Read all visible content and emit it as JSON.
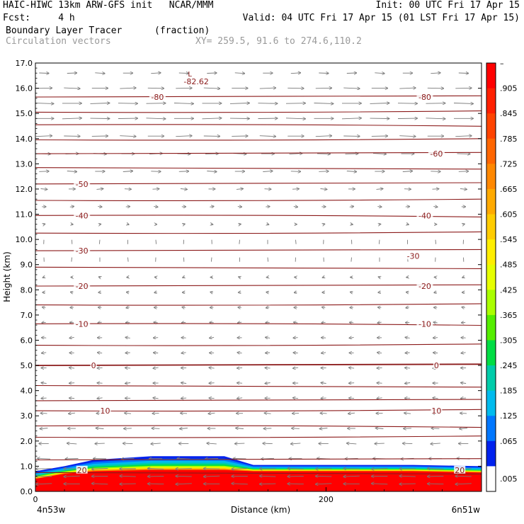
{
  "header": {
    "title_left": "HAIC-HIWC 13km ARW-GFS init   NCAR/MMM",
    "title_right": "Init: 00 UTC Fri 17 Apr 15",
    "fcst_label": "Fcst:     4 h",
    "valid_right": "Valid: 04 UTC Fri 17 Apr 15 (01 LST Fri 17 Apr 15)",
    "field_label": "Boundary Layer Tracer",
    "field_units": "(fraction)",
    "vector_label": "Circulation vectors",
    "xy_label": "XY= 259.5, 91.6 to 274.6,110.2"
  },
  "chart_data": {
    "type": "area",
    "title": "Boundary Layer Tracer",
    "units": "(fraction)",
    "xlabel": "Distance (km)",
    "ylabel": "Height (km)",
    "xlim": [
      0,
      307
    ],
    "ylim": [
      0,
      17
    ],
    "x_tick_labels": [
      "0",
      "200"
    ],
    "x_ticks": [
      0,
      200
    ],
    "x_end_labels": {
      "left": "4n53w",
      "right": "6n51w"
    },
    "y_ticks": [
      0.0,
      1.0,
      2.0,
      3.0,
      4.0,
      5.0,
      6.0,
      7.0,
      8.0,
      9.0,
      10.0,
      11.0,
      12.0,
      13.0,
      14.0,
      15.0,
      16.0,
      17.0
    ],
    "y_tick_labels": [
      "0.0",
      "1.0",
      "2.0",
      "3.0",
      "4.0",
      "5.0",
      "6.0",
      "7.0",
      "8.0",
      "9.0",
      "10.0",
      "11.0",
      "12.0",
      "13.0",
      "14.0",
      "15.0",
      "16.0",
      "17.0"
    ],
    "tracer_layer": {
      "x": [
        0,
        20,
        40,
        80,
        130,
        150,
        200,
        260,
        307
      ],
      "top_km": [
        0.8,
        1.0,
        1.25,
        1.4,
        1.4,
        1.05,
        1.05,
        1.05,
        1.0
      ],
      "core_top_km": [
        0.5,
        0.7,
        0.8,
        0.85,
        0.85,
        0.8,
        0.8,
        0.8,
        0.75
      ]
    },
    "isotherms": {
      "color": "#8b1a1a",
      "levels_km": [
        0.75,
        1.25,
        2.15,
        2.6,
        3.2,
        3.6,
        4.2,
        5.0,
        5.8,
        6.65,
        7.4,
        8.15,
        8.9,
        9.55,
        10.25,
        10.95,
        11.55,
        12.2,
        12.85,
        13.4,
        13.95,
        14.55,
        15.05,
        15.65
      ],
      "labels": [
        {
          "text": "20",
          "x": 32,
          "y": 0.85
        },
        {
          "text": "20",
          "x": 292,
          "y": 0.85
        },
        {
          "text": "10",
          "x": 48,
          "y": 3.2
        },
        {
          "text": "10",
          "x": 276,
          "y": 3.2
        },
        {
          "text": "0",
          "x": 40,
          "y": 5.0
        },
        {
          "text": "0",
          "x": 276,
          "y": 5.0
        },
        {
          "text": "-10",
          "x": 32,
          "y": 6.65
        },
        {
          "text": "-10",
          "x": 268,
          "y": 6.65
        },
        {
          "text": "-20",
          "x": 32,
          "y": 8.15
        },
        {
          "text": "-20",
          "x": 268,
          "y": 8.15
        },
        {
          "text": "-30",
          "x": 32,
          "y": 9.55
        },
        {
          "text": "-30",
          "x": 260,
          "y": 9.35
        },
        {
          "text": "-40",
          "x": 32,
          "y": 10.95
        },
        {
          "text": "-40",
          "x": 268,
          "y": 10.95
        },
        {
          "text": "-50",
          "x": 32,
          "y": 12.2
        },
        {
          "text": "-60",
          "x": 276,
          "y": 13.4
        },
        {
          "text": "-80",
          "x": 84,
          "y": 15.65
        },
        {
          "text": "-80",
          "x": 268,
          "y": 15.65
        }
      ],
      "low_label": {
        "marker": "L",
        "value": "-82.62",
        "x": 104,
        "y": 16.5
      }
    },
    "vectors": {
      "color": "#7a7a7a",
      "rows_km": [
        0.3,
        0.6,
        0.9,
        1.3,
        1.9,
        2.5,
        3.1,
        3.7,
        4.3,
        4.9,
        5.5,
        6.1,
        6.7,
        7.3,
        7.9,
        8.5,
        9.2,
        9.9,
        10.6,
        11.3,
        12.0,
        12.7,
        13.4,
        14.1,
        14.8,
        15.4,
        16.0,
        16.6
      ],
      "u_by_row": [
        -2.5,
        -2.5,
        -2.5,
        -2,
        -1.5,
        -1.2,
        -1,
        -0.8,
        -0.8,
        -0.8,
        -0.7,
        -0.7,
        -0.6,
        -0.5,
        -0.4,
        -0.3,
        -0.2,
        0,
        0.3,
        0.6,
        1.0,
        1.5,
        2.0,
        2.5,
        3.0,
        3.0,
        2.5,
        1.5
      ]
    }
  },
  "colorbar": {
    "top_label": "–",
    "labels": [
      ".905",
      ".845",
      ".785",
      ".725",
      ".665",
      ".605",
      ".545",
      ".485",
      ".425",
      ".365",
      ".305",
      ".245",
      ".185",
      ".125",
      ".065",
      ".005"
    ],
    "colors": [
      "#ff0000",
      "#ff2000",
      "#ff4400",
      "#ff6600",
      "#ff8800",
      "#ffaa00",
      "#ffcc00",
      "#ffee00",
      "#e6ff00",
      "#aaff00",
      "#55ee00",
      "#00dd44",
      "#00ccaa",
      "#00bbee",
      "#0077ff",
      "#0022ee",
      "#ffffff"
    ]
  }
}
